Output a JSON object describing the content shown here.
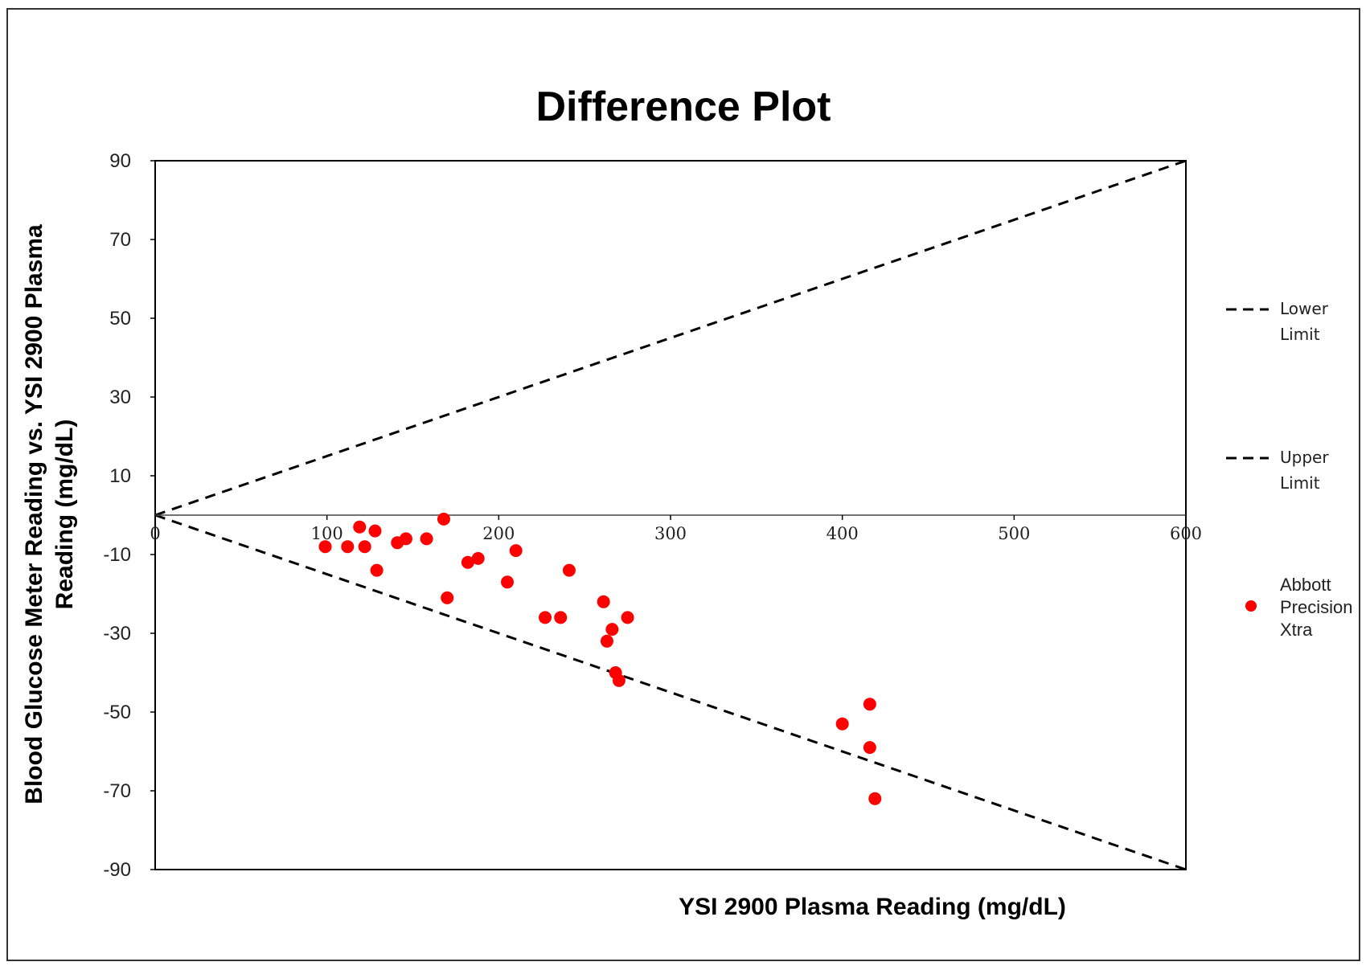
{
  "chart_data": {
    "type": "scatter",
    "title": "Difference Plot",
    "xlabel": "YSI 2900 Plasma Reading (mg/dL)",
    "ylabel_lines": [
      "Blood Glucose Meter Reading vs.  YSI 2900 Plasma",
      "Reading (mg/dL)"
    ],
    "xlim": [
      0,
      600
    ],
    "ylim": [
      -90,
      90
    ],
    "x_ticks": [
      0,
      100,
      200,
      300,
      400,
      500,
      600
    ],
    "x_tick_labels": [
      "0",
      "100",
      "200",
      "300",
      "400",
      "500",
      "600"
    ],
    "y_ticks": [
      90,
      70,
      50,
      30,
      10,
      -10,
      -30,
      -50,
      -70,
      -90
    ],
    "y_tick_labels": [
      "90",
      "70",
      "50",
      "30",
      "10",
      "-10",
      "-30",
      "-50",
      "-70",
      "-90"
    ],
    "grid": false,
    "legend_position": "right",
    "lines": [
      {
        "name": "Lower\nLimit",
        "style": "dashed",
        "color": "#000000",
        "points": [
          [
            0,
            0
          ],
          [
            600,
            -90
          ]
        ]
      },
      {
        "name": "Upper\nLimit",
        "style": "dashed",
        "color": "#000000",
        "points": [
          [
            0,
            0
          ],
          [
            600,
            90
          ]
        ]
      }
    ],
    "series": [
      {
        "name": "Abbott\nPrecision\nXtra",
        "color": "#ff0000",
        "points": [
          [
            99,
            -8
          ],
          [
            112,
            -8
          ],
          [
            119,
            -3
          ],
          [
            122,
            -8
          ],
          [
            128,
            -4
          ],
          [
            129,
            -14
          ],
          [
            141,
            -7
          ],
          [
            146,
            -6
          ],
          [
            158,
            -6
          ],
          [
            168,
            -1
          ],
          [
            170,
            -21
          ],
          [
            182,
            -12
          ],
          [
            188,
            -11
          ],
          [
            205,
            -17
          ],
          [
            210,
            -9
          ],
          [
            227,
            -26
          ],
          [
            236,
            -26
          ],
          [
            241,
            -14
          ],
          [
            261,
            -22
          ],
          [
            263,
            -32
          ],
          [
            266,
            -29
          ],
          [
            268,
            -40
          ],
          [
            270,
            -42
          ],
          [
            275,
            -26
          ],
          [
            400,
            -53
          ],
          [
            416,
            -48
          ],
          [
            416,
            -59
          ],
          [
            419,
            -72
          ]
        ]
      }
    ]
  }
}
